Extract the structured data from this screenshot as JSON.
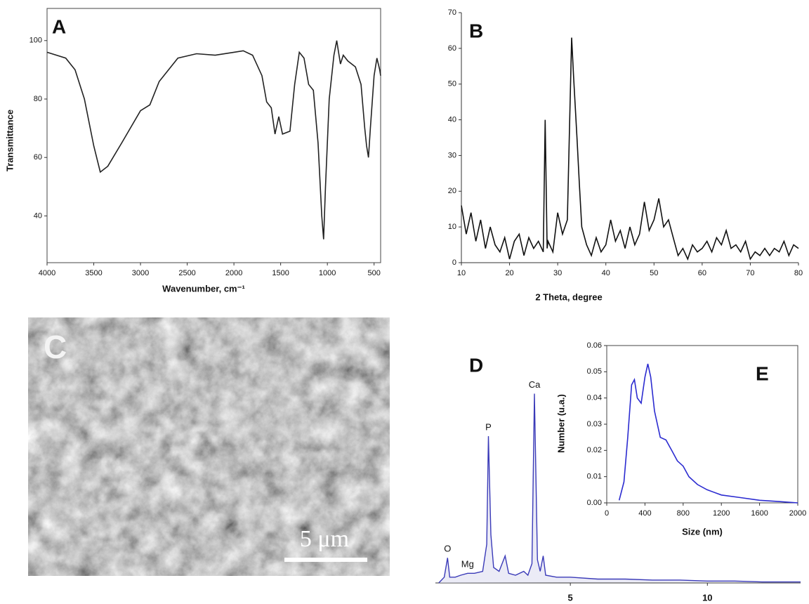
{
  "chart_data": [
    {
      "type": "line",
      "title": "A",
      "xlabel": "Wavenumber, cm⁻¹",
      "ylabel": "Transmittance",
      "xlim": [
        4000,
        430
      ],
      "ylim": [
        24,
        111
      ],
      "xticks": [
        4000,
        3500,
        3000,
        2500,
        2000,
        1500,
        1000,
        500
      ],
      "yticks": [
        40,
        60,
        80,
        100
      ],
      "frame": true,
      "color": "#222222",
      "x": [
        4000,
        3800,
        3700,
        3600,
        3500,
        3430,
        3350,
        3200,
        3000,
        2900,
        2800,
        2600,
        2400,
        2200,
        2000,
        1900,
        1800,
        1700,
        1650,
        1600,
        1560,
        1520,
        1480,
        1400,
        1350,
        1300,
        1250,
        1200,
        1150,
        1100,
        1060,
        1040,
        1020,
        980,
        930,
        900,
        880,
        860,
        830,
        780,
        700,
        640,
        600,
        580,
        560,
        540,
        500,
        470,
        440,
        430
      ],
      "values": [
        96,
        94,
        90,
        80,
        64,
        55,
        57,
        65,
        76,
        78,
        86,
        94,
        95.5,
        95,
        96,
        96.5,
        95,
        88,
        79,
        77,
        68,
        74,
        68,
        69,
        85,
        96,
        94,
        85,
        83,
        65,
        40,
        32,
        50,
        80,
        95,
        100,
        96,
        92,
        95,
        93,
        91,
        85,
        70,
        64,
        60,
        70,
        88,
        94,
        90,
        88
      ]
    },
    {
      "type": "line",
      "title": "B",
      "xlabel": "2 Theta, degree",
      "xlim": [
        10,
        80
      ],
      "ylim": [
        0,
        70
      ],
      "xticks": [
        10,
        20,
        30,
        40,
        50,
        60,
        70,
        80
      ],
      "yticks": [
        0,
        10,
        20,
        30,
        40,
        50,
        60,
        70
      ],
      "frame": false,
      "color": "#111111",
      "x": [
        10,
        11,
        12,
        13,
        14,
        15,
        16,
        17,
        18,
        19,
        20,
        21,
        22,
        23,
        24,
        25,
        26,
        27,
        27.4,
        27.8,
        28,
        29,
        30,
        31,
        32,
        32.9,
        33.3,
        34,
        34.5,
        35,
        36,
        37,
        38,
        39,
        40,
        41,
        42,
        43,
        44,
        45,
        46,
        47,
        48,
        49,
        50,
        51,
        52,
        53,
        54,
        55,
        56,
        57,
        58,
        59,
        60,
        61,
        62,
        63,
        64,
        65,
        66,
        67,
        68,
        69,
        70,
        71,
        72,
        73,
        74,
        75,
        76,
        77,
        78,
        79,
        80
      ],
      "values": [
        16,
        8,
        14,
        6,
        12,
        4,
        10,
        5,
        3,
        7,
        1,
        6,
        8,
        2,
        7,
        4,
        6,
        3,
        40,
        4,
        6,
        3,
        14,
        8,
        12,
        63,
        52,
        35,
        22,
        10,
        5,
        2,
        7,
        3,
        5,
        12,
        6,
        9,
        4,
        10,
        5,
        8,
        17,
        9,
        12,
        18,
        10,
        12,
        7,
        2,
        4,
        1,
        5,
        3,
        4,
        6,
        3,
        7,
        5,
        9,
        4,
        5,
        3,
        6,
        1,
        3,
        2,
        4,
        2,
        4,
        3,
        6,
        2,
        5,
        4
      ]
    },
    {
      "type": "spectrum",
      "title": "D",
      "xlim": [
        0,
        13.4
      ],
      "ylim": [
        0,
        100
      ],
      "xticks": [
        5,
        10
      ],
      "color": "#3a3ab8",
      "annotations": [
        {
          "text": "O",
          "x": 0.52
        },
        {
          "text": "Mg",
          "x": 1.25
        },
        {
          "text": "P",
          "x": 2.01
        },
        {
          "text": "Ca",
          "x": 3.69
        }
      ],
      "x": [
        0.2,
        0.4,
        0.52,
        0.6,
        0.8,
        1.0,
        1.25,
        1.5,
        1.8,
        1.95,
        2.01,
        2.1,
        2.2,
        2.4,
        2.62,
        2.75,
        3.0,
        3.3,
        3.45,
        3.6,
        3.69,
        3.8,
        3.9,
        4.01,
        4.1,
        4.5,
        5,
        6,
        7,
        8,
        9,
        10,
        11,
        12,
        13,
        13.4
      ],
      "values": [
        0,
        3,
        13,
        3,
        3,
        4,
        5,
        5,
        6,
        20,
        76,
        25,
        8,
        6,
        14,
        5,
        4,
        6,
        4,
        10,
        98,
        12,
        6,
        14,
        4,
        3,
        3,
        2,
        2,
        1.5,
        1.5,
        1,
        1,
        0.5,
        0.5,
        0.5
      ]
    },
    {
      "type": "line",
      "title": "E",
      "xlabel": "Size (nm)",
      "ylabel": "Number (u.a.)",
      "xlim": [
        0,
        2000
      ],
      "ylim": [
        0,
        0.06
      ],
      "xticks": [
        0,
        400,
        800,
        1200,
        1600,
        2000
      ],
      "yticks": [
        {
          "value": 0,
          "label": "0.00"
        },
        0.01,
        0.02,
        0.03,
        0.04,
        0.05,
        0.06
      ],
      "frame": true,
      "color": "#2b2bd0",
      "x": [
        130,
        180,
        220,
        260,
        290,
        320,
        360,
        400,
        430,
        460,
        500,
        560,
        620,
        680,
        740,
        800,
        860,
        950,
        1050,
        1200,
        1400,
        1600,
        1800,
        2000
      ],
      "values": [
        0.001,
        0.008,
        0.025,
        0.045,
        0.047,
        0.04,
        0.038,
        0.048,
        0.053,
        0.048,
        0.035,
        0.025,
        0.024,
        0.02,
        0.016,
        0.014,
        0.01,
        0.007,
        0.005,
        0.003,
        0.002,
        0.001,
        0.0005,
        0
      ]
    }
  ],
  "image": {
    "label": "C",
    "scale_bar": "5 μm"
  }
}
